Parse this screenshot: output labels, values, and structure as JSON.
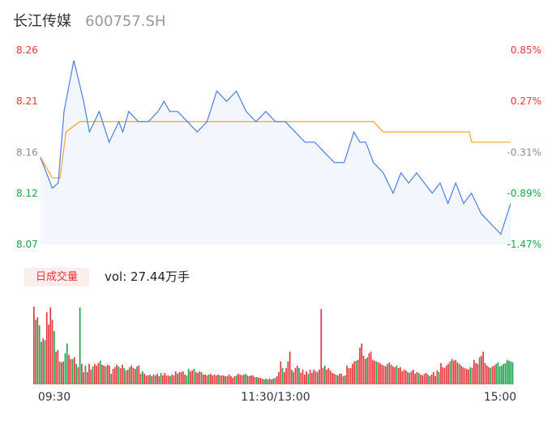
{
  "header": {
    "name": "长江传媒",
    "code": "600757.SH"
  },
  "colors": {
    "up": "#e8353a",
    "down": "#1aa34a",
    "neutral": "#8c8c8c",
    "price_line": "#4a7fe0",
    "avg_line": "#f4a62a",
    "area_fill": "#f3f7fd"
  },
  "volume_panel": {
    "badge": "日成交量",
    "vol_text": "vol: 27.44万手"
  },
  "chart_data": [
    {
      "type": "line",
      "name": "intraday-price",
      "ylim": [
        8.07,
        8.26
      ],
      "y_tick_labels": [
        "8.26",
        "8.21",
        "8.16",
        "8.12",
        "8.07"
      ],
      "y_tick_values": [
        8.26,
        8.21,
        8.16,
        8.12,
        8.07
      ],
      "pct_tick_labels": [
        "0.85%",
        "0.27%",
        "-0.31%",
        "-0.89%",
        "-1.47%"
      ],
      "x_tick_labels": [
        "09:30",
        "11:30/13:00",
        "15:00"
      ],
      "series": [
        {
          "role": "price",
          "x": [
            0,
            6,
            9,
            12,
            17,
            22,
            25,
            30,
            35,
            40,
            42,
            45,
            50,
            55,
            60,
            63,
            66,
            70,
            75,
            80,
            85,
            90,
            95,
            100,
            105,
            110,
            115,
            120,
            125,
            130,
            135,
            140,
            145,
            150,
            155,
            160,
            163,
            166,
            170,
            175,
            180,
            184,
            188,
            192,
            196,
            200,
            204,
            208,
            212,
            216,
            220,
            225,
            230,
            235,
            240
          ],
          "values": [
            8.155,
            8.125,
            8.13,
            8.2,
            8.25,
            8.21,
            8.18,
            8.2,
            8.17,
            8.19,
            8.18,
            8.2,
            8.19,
            8.19,
            8.2,
            8.21,
            8.2,
            8.2,
            8.19,
            8.18,
            8.19,
            8.22,
            8.21,
            8.22,
            8.2,
            8.19,
            8.2,
            8.19,
            8.19,
            8.18,
            8.17,
            8.17,
            8.16,
            8.15,
            8.15,
            8.18,
            8.17,
            8.17,
            8.15,
            8.14,
            8.12,
            8.14,
            8.13,
            8.14,
            8.13,
            8.12,
            8.13,
            8.11,
            8.13,
            8.11,
            8.12,
            8.1,
            8.09,
            8.08,
            8.11
          ]
        },
        {
          "role": "avg",
          "x": [
            0,
            6,
            10,
            13,
            20,
            30,
            60,
            90,
            120,
            130,
            150,
            170,
            175,
            200,
            219,
            220,
            240
          ],
          "values": [
            8.155,
            8.135,
            8.135,
            8.18,
            8.19,
            8.19,
            8.19,
            8.19,
            8.19,
            8.19,
            8.19,
            8.19,
            8.18,
            8.18,
            8.18,
            8.17,
            8.17
          ]
        }
      ]
    },
    {
      "type": "bar",
      "name": "volume",
      "values": [
        950,
        790,
        820,
        720,
        520,
        560,
        540,
        880,
        730,
        940,
        790,
        650,
        400,
        420,
        280,
        270,
        280,
        380,
        500,
        360,
        310,
        310,
        330,
        250,
        210,
        940,
        250,
        150,
        230,
        150,
        250,
        180,
        220,
        250,
        230,
        260,
        290,
        240,
        230,
        220,
        240,
        230,
        130,
        190,
        210,
        240,
        220,
        200,
        240,
        200,
        170,
        180,
        210,
        230,
        200,
        190,
        220,
        230,
        130,
        160,
        130,
        110,
        110,
        120,
        100,
        120,
        110,
        130,
        100,
        140,
        110,
        140,
        110,
        110,
        100,
        120,
        110,
        160,
        130,
        150,
        150,
        160,
        120,
        110,
        190,
        160,
        170,
        190,
        150,
        140,
        160,
        150,
        120,
        120,
        110,
        120,
        130,
        110,
        120,
        110,
        120,
        110,
        110,
        110,
        100,
        100,
        120,
        100,
        80,
        100,
        110,
        130,
        120,
        110,
        120,
        130,
        110,
        100,
        110,
        110,
        90,
        90,
        80,
        80,
        70,
        60,
        70,
        60,
        70,
        60,
        70,
        80,
        100,
        150,
        280,
        200,
        150,
        200,
        280,
        400,
        180,
        150,
        200,
        230,
        200,
        140,
        180,
        120,
        160,
        130,
        180,
        140,
        180,
        160,
        150,
        180,
        920,
        200,
        230,
        180,
        200,
        170,
        140,
        130,
        120,
        110,
        130,
        130,
        100,
        110,
        230,
        200,
        200,
        250,
        280,
        290,
        300,
        450,
        500,
        350,
        310,
        330,
        380,
        400,
        300,
        290,
        280,
        270,
        260,
        240,
        230,
        220,
        250,
        270,
        240,
        220,
        210,
        230,
        200,
        210,
        160,
        180,
        170,
        150,
        140,
        160,
        180,
        130,
        150,
        140,
        120,
        110,
        130,
        140,
        120,
        100,
        120,
        150,
        100,
        170,
        150,
        260,
        210,
        200,
        230,
        250,
        280,
        310,
        290,
        300,
        270,
        250,
        230,
        210,
        200,
        190,
        180,
        210,
        200,
        300,
        260,
        250,
        330,
        350,
        400,
        260,
        230,
        210,
        200,
        220,
        230,
        250,
        270,
        220,
        230,
        250,
        260,
        300,
        290,
        280,
        270
      ],
      "up_flags": [
        1,
        0,
        1,
        0,
        0,
        1,
        0,
        1,
        1,
        1,
        1,
        0,
        1,
        1,
        0,
        1,
        1,
        0,
        0,
        1,
        1,
        0,
        1,
        0,
        1,
        0,
        1,
        1,
        0,
        1,
        1,
        1,
        0,
        1,
        1,
        1,
        0,
        1,
        1,
        0,
        1,
        1,
        0,
        1,
        1,
        1,
        0,
        1,
        1,
        0,
        1,
        1,
        0,
        1,
        1,
        1,
        0,
        1,
        1,
        0,
        1,
        1,
        1,
        0,
        1,
        1,
        0,
        1,
        1,
        0,
        1,
        1,
        1,
        1,
        0,
        1,
        1,
        1,
        0,
        1,
        1,
        1,
        1,
        0,
        0,
        1,
        1,
        0,
        1,
        1,
        1,
        0,
        1,
        1,
        1,
        0,
        1,
        1,
        1,
        1,
        0,
        1,
        1,
        1,
        0,
        1,
        1,
        1,
        1,
        1,
        0,
        1,
        1,
        1,
        0,
        0,
        1,
        1,
        1,
        1,
        1,
        0,
        1,
        1,
        1,
        0,
        0,
        1,
        1,
        0,
        1,
        0,
        1,
        1,
        1,
        0,
        1,
        1,
        1,
        1,
        0,
        1,
        1,
        1,
        0,
        1,
        1,
        1,
        1,
        0,
        1,
        1,
        1,
        1,
        0,
        1,
        1,
        1,
        0,
        1,
        1,
        1,
        1,
        1,
        0,
        1,
        1,
        1,
        1,
        0,
        1,
        1,
        1,
        1,
        1,
        0,
        1,
        1,
        1,
        1,
        1,
        0,
        1,
        1,
        1,
        1,
        0,
        1,
        1,
        1,
        1,
        1,
        0,
        1,
        1,
        1,
        1,
        0,
        1,
        1,
        1,
        1,
        1,
        0,
        1,
        1,
        1,
        1,
        1,
        0,
        1,
        1,
        1,
        1,
        0,
        1,
        1,
        1,
        1,
        1,
        0,
        1,
        1,
        1,
        1,
        1,
        0,
        1,
        1,
        1,
        1,
        0,
        1,
        1,
        1,
        1,
        1,
        0,
        1,
        1,
        1,
        1,
        0,
        1,
        1,
        1,
        1,
        1,
        0,
        1,
        1
      ]
    }
  ]
}
